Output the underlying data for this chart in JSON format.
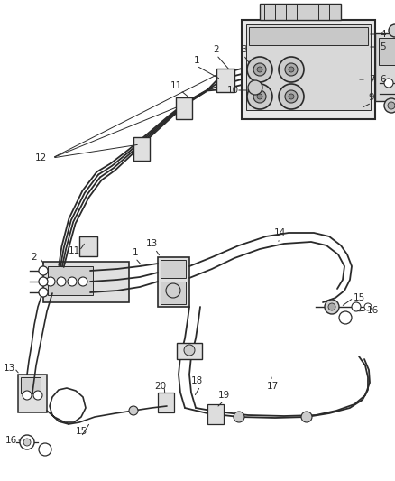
{
  "figsize": [
    4.38,
    5.33
  ],
  "dpi": 100,
  "line_color": "#2a2a2a",
  "bg_color": "#ffffff",
  "lw": 1.4,
  "lw_thin": 0.9,
  "lw_thick": 2.0,
  "label_fs": 7.5
}
